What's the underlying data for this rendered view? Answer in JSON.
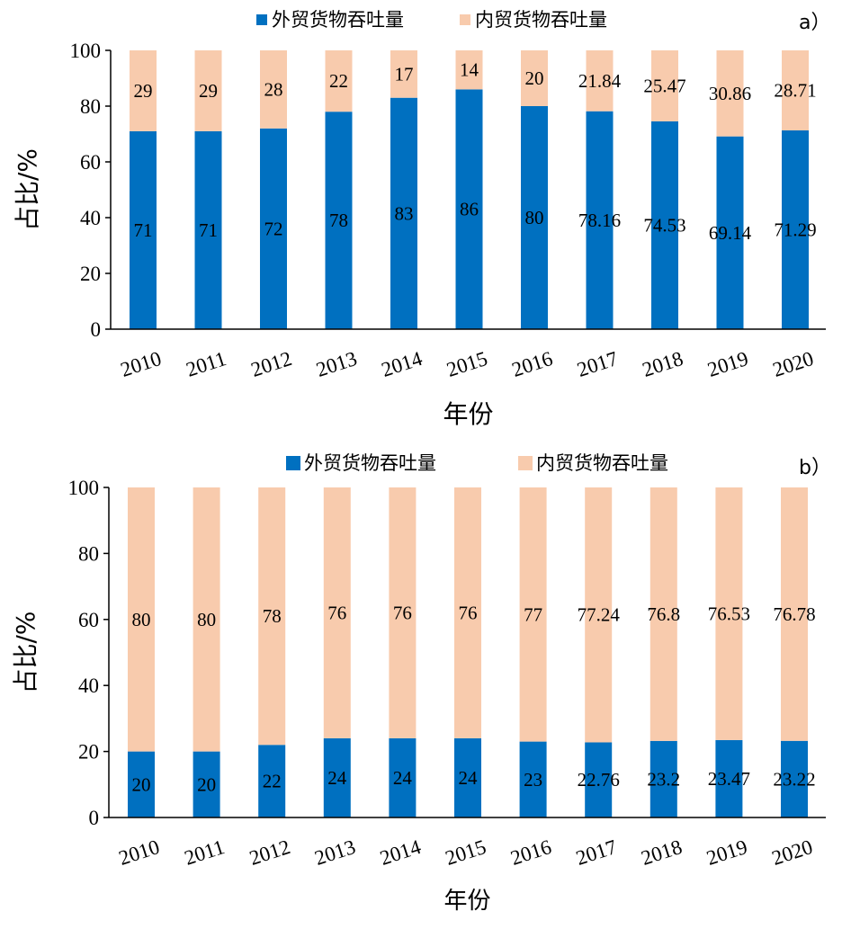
{
  "chart_data": [
    {
      "type": "bar",
      "stacked": true,
      "panel_label": "a）",
      "categories": [
        "2010",
        "2011",
        "2012",
        "2013",
        "2014",
        "2015",
        "2016",
        "2017",
        "2018",
        "2019",
        "2020"
      ],
      "series": [
        {
          "name": "外贸货物吞吐量",
          "color": "#0070C0",
          "values": [
            71,
            71,
            72,
            78,
            83,
            86,
            80,
            78.16,
            74.53,
            69.14,
            71.29
          ],
          "labels": [
            "71",
            "71",
            "72",
            "78",
            "83",
            "86",
            "80",
            "78.16",
            "74.53",
            "69.14",
            "71.29"
          ]
        },
        {
          "name": "内贸货物吞吐量",
          "color": "#F8CBAD",
          "values": [
            29,
            29,
            28,
            22,
            17,
            14,
            20,
            21.84,
            25.47,
            30.86,
            28.71
          ],
          "labels": [
            "29",
            "29",
            "28",
            "22",
            "17",
            "14",
            "20",
            "21.84",
            "25.47",
            "30.86",
            "28.71"
          ]
        }
      ],
      "ylabel": "占比/%",
      "xlabel": "年份",
      "ylim": [
        0,
        100
      ],
      "yticks": [
        "0",
        "20",
        "40",
        "60",
        "80",
        "100"
      ],
      "legend_position": "top"
    },
    {
      "type": "bar",
      "stacked": true,
      "panel_label": "b）",
      "categories": [
        "2010",
        "2011",
        "2012",
        "2013",
        "2014",
        "2015",
        "2016",
        "2017",
        "2018",
        "2019",
        "2020"
      ],
      "series": [
        {
          "name": "外贸货物吞吐量",
          "color": "#0070C0",
          "values": [
            20,
            20,
            22,
            24,
            24,
            24,
            23,
            22.76,
            23.2,
            23.47,
            23.22
          ],
          "labels": [
            "20",
            "20",
            "22",
            "24",
            "24",
            "24",
            "23",
            "22.76",
            "23.2",
            "23.47",
            "23.22"
          ]
        },
        {
          "name": "内贸货物吞吐量",
          "color": "#F8CBAD",
          "values": [
            80,
            80,
            78,
            76,
            76,
            76,
            77,
            77.24,
            76.8,
            76.53,
            76.78
          ],
          "labels": [
            "80",
            "80",
            "78",
            "76",
            "76",
            "76",
            "77",
            "77.24",
            "76.8",
            "76.53",
            "76.78"
          ]
        }
      ],
      "ylabel": "占比/%",
      "xlabel": "年份",
      "ylim": [
        0,
        100
      ],
      "yticks": [
        "0",
        "20",
        "40",
        "60",
        "80",
        "100"
      ],
      "legend_position": "top"
    }
  ]
}
